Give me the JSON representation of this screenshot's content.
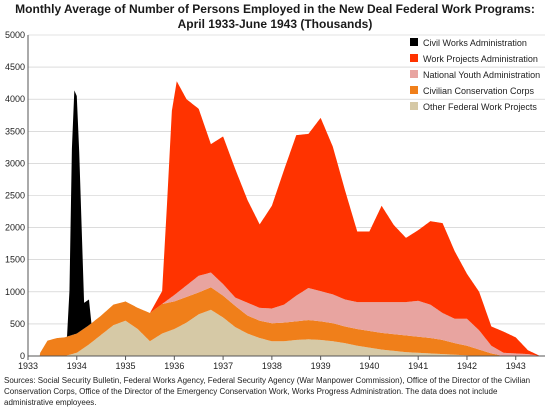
{
  "chart_data": {
    "type": "area",
    "title": "Monthly Average of Number of Persons Employed in the New Deal Federal Work Programs:",
    "subtitle": "April 1933-June 1943 (Thousands)",
    "xlabel": "",
    "ylabel": "",
    "xlim": [
      1933.0,
      1943.6
    ],
    "ylim": [
      0,
      5000
    ],
    "y_ticks": [
      0,
      500,
      1000,
      1500,
      2000,
      2500,
      3000,
      3500,
      4000,
      4500,
      5000
    ],
    "x_ticks": [
      "1933",
      "1934",
      "1935",
      "1936",
      "1937",
      "1938",
      "1939",
      "1940",
      "1941",
      "1942",
      "1943"
    ],
    "grid": true,
    "legend_position": "top-right",
    "stacking": "stacked",
    "series": [
      {
        "name": "Other Federal Work Projects",
        "color": "#d6c9a6",
        "points": [
          [
            1933.25,
            0
          ],
          [
            1933.5,
            0
          ],
          [
            1933.75,
            0
          ],
          [
            1934.0,
            50
          ],
          [
            1934.25,
            180
          ],
          [
            1934.5,
            330
          ],
          [
            1934.75,
            480
          ],
          [
            1935.0,
            550
          ],
          [
            1935.25,
            420
          ],
          [
            1935.5,
            230
          ],
          [
            1935.75,
            350
          ],
          [
            1936.0,
            420
          ],
          [
            1936.25,
            520
          ],
          [
            1936.5,
            650
          ],
          [
            1936.75,
            720
          ],
          [
            1937.0,
            600
          ],
          [
            1937.25,
            450
          ],
          [
            1937.5,
            350
          ],
          [
            1937.75,
            280
          ],
          [
            1938.0,
            230
          ],
          [
            1938.25,
            230
          ],
          [
            1938.5,
            250
          ],
          [
            1938.75,
            260
          ],
          [
            1939.0,
            250
          ],
          [
            1939.25,
            230
          ],
          [
            1939.5,
            200
          ],
          [
            1939.75,
            160
          ],
          [
            1940.0,
            130
          ],
          [
            1940.25,
            100
          ],
          [
            1940.5,
            80
          ],
          [
            1940.75,
            60
          ],
          [
            1941.0,
            50
          ],
          [
            1941.25,
            40
          ],
          [
            1941.5,
            30
          ],
          [
            1941.75,
            20
          ],
          [
            1942.0,
            10
          ],
          [
            1942.25,
            0
          ],
          [
            1943.5,
            0
          ]
        ]
      },
      {
        "name": "Civilian Conservation Corps",
        "color": "#f07f1a",
        "points": [
          [
            1933.25,
            50
          ],
          [
            1933.4,
            240
          ],
          [
            1933.6,
            280
          ],
          [
            1933.75,
            290
          ],
          [
            1934.0,
            300
          ],
          [
            1934.25,
            300
          ],
          [
            1934.5,
            300
          ],
          [
            1934.75,
            320
          ],
          [
            1935.0,
            300
          ],
          [
            1935.25,
            330
          ],
          [
            1935.5,
            440
          ],
          [
            1935.75,
            460
          ],
          [
            1936.0,
            430
          ],
          [
            1936.25,
            400
          ],
          [
            1936.5,
            340
          ],
          [
            1936.75,
            350
          ],
          [
            1937.0,
            340
          ],
          [
            1937.25,
            330
          ],
          [
            1937.5,
            280
          ],
          [
            1937.75,
            270
          ],
          [
            1938.0,
            280
          ],
          [
            1938.25,
            290
          ],
          [
            1938.5,
            290
          ],
          [
            1938.75,
            300
          ],
          [
            1939.0,
            290
          ],
          [
            1939.25,
            280
          ],
          [
            1939.5,
            260
          ],
          [
            1939.75,
            260
          ],
          [
            1940.0,
            260
          ],
          [
            1940.25,
            260
          ],
          [
            1940.5,
            260
          ],
          [
            1940.75,
            260
          ],
          [
            1941.0,
            250
          ],
          [
            1941.25,
            240
          ],
          [
            1941.5,
            220
          ],
          [
            1941.75,
            180
          ],
          [
            1942.0,
            150
          ],
          [
            1942.25,
            100
          ],
          [
            1942.5,
            40
          ],
          [
            1942.75,
            0
          ],
          [
            1943.5,
            0
          ]
        ]
      },
      {
        "name": "National Youth Administration",
        "color": "#e8a4a0",
        "points": [
          [
            1933.25,
            0
          ],
          [
            1935.75,
            0
          ],
          [
            1936.0,
            100
          ],
          [
            1936.25,
            180
          ],
          [
            1936.5,
            260
          ],
          [
            1936.75,
            230
          ],
          [
            1937.0,
            180
          ],
          [
            1937.25,
            130
          ],
          [
            1937.5,
            200
          ],
          [
            1937.75,
            200
          ],
          [
            1938.0,
            230
          ],
          [
            1938.25,
            280
          ],
          [
            1938.5,
            400
          ],
          [
            1938.75,
            500
          ],
          [
            1939.0,
            470
          ],
          [
            1939.25,
            450
          ],
          [
            1939.5,
            420
          ],
          [
            1939.75,
            420
          ],
          [
            1940.0,
            450
          ],
          [
            1940.25,
            480
          ],
          [
            1940.5,
            500
          ],
          [
            1940.75,
            520
          ],
          [
            1941.0,
            560
          ],
          [
            1941.25,
            520
          ],
          [
            1941.5,
            420
          ],
          [
            1941.75,
            380
          ],
          [
            1942.0,
            420
          ],
          [
            1942.25,
            300
          ],
          [
            1942.5,
            120
          ],
          [
            1942.75,
            50
          ],
          [
            1943.0,
            40
          ],
          [
            1943.25,
            30
          ],
          [
            1943.5,
            0
          ]
        ]
      },
      {
        "name": "Work Projects Administration",
        "color": "#ff3300",
        "points": [
          [
            1933.25,
            0
          ],
          [
            1935.5,
            0
          ],
          [
            1935.75,
            200
          ],
          [
            1935.85,
            1500
          ],
          [
            1935.95,
            2900
          ],
          [
            1936.05,
            3300
          ],
          [
            1936.25,
            2900
          ],
          [
            1936.5,
            2600
          ],
          [
            1936.75,
            2000
          ],
          [
            1937.0,
            2300
          ],
          [
            1937.25,
            2000
          ],
          [
            1937.5,
            1600
          ],
          [
            1937.75,
            1300
          ],
          [
            1938.0,
            1600
          ],
          [
            1938.25,
            2100
          ],
          [
            1938.5,
            2500
          ],
          [
            1938.75,
            2400
          ],
          [
            1939.0,
            2700
          ],
          [
            1939.25,
            2300
          ],
          [
            1939.5,
            1700
          ],
          [
            1939.75,
            1100
          ],
          [
            1940.0,
            1100
          ],
          [
            1940.25,
            1500
          ],
          [
            1940.5,
            1200
          ],
          [
            1940.75,
            1000
          ],
          [
            1941.0,
            1100
          ],
          [
            1941.25,
            1300
          ],
          [
            1941.5,
            1400
          ],
          [
            1941.75,
            1050
          ],
          [
            1942.0,
            700
          ],
          [
            1942.25,
            600
          ],
          [
            1942.5,
            300
          ],
          [
            1942.75,
            330
          ],
          [
            1943.0,
            250
          ],
          [
            1943.25,
            60
          ],
          [
            1943.5,
            0
          ]
        ]
      },
      {
        "name": "Civil Works Administration",
        "color": "#000000",
        "points": [
          [
            1933.25,
            0
          ],
          [
            1933.8,
            0
          ],
          [
            1933.85,
            700
          ],
          [
            1933.9,
            2900
          ],
          [
            1933.95,
            3800
          ],
          [
            1934.0,
            3700
          ],
          [
            1934.05,
            2800
          ],
          [
            1934.1,
            1600
          ],
          [
            1934.15,
            400
          ],
          [
            1934.25,
            400
          ],
          [
            1934.3,
            0
          ],
          [
            1943.5,
            0
          ]
        ]
      }
    ],
    "legend_order": [
      "Civil Works Administration",
      "Work Projects Administration",
      "National Youth Administration",
      "Civilian Conservation Corps",
      "Other Federal Work Projects"
    ],
    "footnote": "Sources: Social Security Bulletin, Federal Works Agency, Federal Security Agency (War Manpower Commission), Office of the Director of the Civilian Conservation Corps, Office of the Director of the Emergency Conservation Work, Works Progress Administration.  The data does not include administrative employees."
  }
}
